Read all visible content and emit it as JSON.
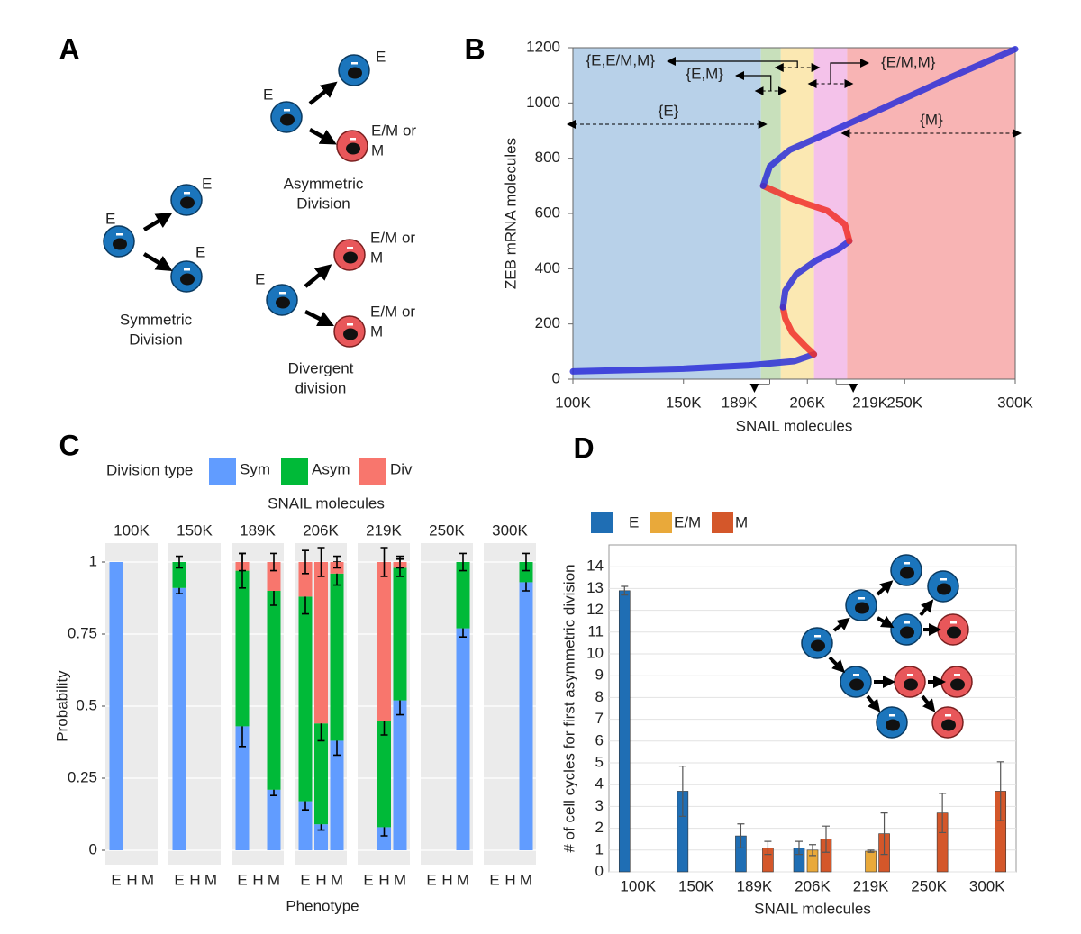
{
  "panel_labels": {
    "a": "A",
    "b": "B",
    "c": "C",
    "d": "D"
  },
  "diagram": {
    "symmetric": {
      "parent": "E",
      "child_top": "E",
      "child_bottom": "E",
      "caption": [
        "Symmetric",
        "Division"
      ]
    },
    "asymmetric": {
      "parent": "E",
      "child_top": "E",
      "child_bottom": [
        "E/M or",
        "M"
      ],
      "caption": [
        "Asymmetric",
        "Division"
      ]
    },
    "divergent": {
      "parent": "E",
      "child_top": [
        "E/M or",
        "M"
      ],
      "child_bottom": [
        "E/M or",
        "M"
      ],
      "caption": [
        "Divergent",
        "division"
      ]
    }
  },
  "chart_data": [
    {
      "type": "line",
      "xlabel": "SNAIL molecules",
      "ylabel": "ZEB mRNA molecules",
      "xlim": [
        100000,
        300000
      ],
      "ylim": [
        0,
        1200
      ],
      "xticks": [
        {
          "value": 100000,
          "label": "100K"
        },
        {
          "value": 150000,
          "label": "150K"
        },
        {
          "value": 189000,
          "label": "189K"
        },
        {
          "value": 206000,
          "label": "206K"
        },
        {
          "value": 219000,
          "label": "219K"
        },
        {
          "value": 250000,
          "label": "250K"
        },
        {
          "value": 300000,
          "label": "300K"
        }
      ],
      "yticks": [
        0,
        200,
        400,
        600,
        800,
        1000,
        1200
      ],
      "regions": [
        {
          "label": "{E}",
          "color": "#b8d1e9",
          "range": [
            100000,
            185000
          ]
        },
        {
          "label": "{E,M}",
          "color": "#c8e0bb",
          "range": [
            185000,
            194000
          ]
        },
        {
          "label": "{E,E/M,M}",
          "color": "#fbe8b2",
          "range": [
            194000,
            209000
          ]
        },
        {
          "label": "{E/M,M}",
          "color": "#f4c2ea",
          "range": [
            209000,
            224000
          ]
        },
        {
          "label": "{M}",
          "color": "#f8b4b4",
          "range": [
            224000,
            300000
          ]
        }
      ],
      "series": [
        {
          "color": "#2b2fd8",
          "x": [
            100000,
            150000,
            180000,
            200000,
            209000
          ],
          "y": [
            28,
            38,
            50,
            65,
            90
          ]
        },
        {
          "color": "#f0302a",
          "x": [
            209000,
            205000,
            199000,
            196000,
            195000
          ],
          "y": [
            90,
            120,
            170,
            220,
            260
          ]
        },
        {
          "color": "#2b2fd8",
          "x": [
            195000,
            196000,
            201000,
            210000,
            220000,
            225000
          ],
          "y": [
            260,
            320,
            380,
            430,
            470,
            500
          ]
        },
        {
          "color": "#f0302a",
          "x": [
            225000,
            223000,
            215000,
            200000,
            186000
          ],
          "y": [
            500,
            560,
            610,
            650,
            700
          ]
        },
        {
          "color": "#2b2fd8",
          "x": [
            186000,
            189000,
            198000,
            215000,
            240000,
            270000,
            300000
          ],
          "y": [
            700,
            770,
            830,
            890,
            980,
            1090,
            1195
          ]
        }
      ]
    },
    {
      "type": "faceted_stacked_bar",
      "title": "SNAIL molecules",
      "legend_title": "Division type",
      "xlabel": "Phenotype",
      "ylabel": "Probability",
      "facets": [
        "100K",
        "150K",
        "189K",
        "206K",
        "219K",
        "250K",
        "300K"
      ],
      "categories": [
        "E",
        "H",
        "M"
      ],
      "ylim": [
        -0.05,
        1.05
      ],
      "yticks": [
        0,
        0.25,
        0.5,
        0.75,
        1
      ],
      "grid": true,
      "series": [
        {
          "name": "Sym",
          "color": "#619cff",
          "values": [
            [
              1,
              0,
              0
            ],
            [
              0.91,
              0,
              0
            ],
            [
              0.43,
              0,
              0.21
            ],
            [
              0.17,
              0.09,
              0.38
            ],
            [
              0,
              0.08,
              0.52
            ],
            [
              0,
              0,
              0.77
            ],
            [
              0,
              0,
              0.93
            ]
          ],
          "errors": [
            [
              0,
              0,
              0
            ],
            [
              0.02,
              0,
              0
            ],
            [
              0.07,
              0,
              0.02
            ],
            [
              0.03,
              0.02,
              0.05
            ],
            [
              0,
              0.03,
              0.05
            ],
            [
              0,
              0,
              0.03
            ],
            [
              0,
              0,
              0.03
            ]
          ]
        },
        {
          "name": "Asym",
          "color": "#00ba38",
          "values": [
            [
              0,
              0,
              0
            ],
            [
              0.09,
              0,
              0
            ],
            [
              0.54,
              0,
              0.69
            ],
            [
              0.71,
              0.35,
              0.58
            ],
            [
              0,
              0.37,
              0.46
            ],
            [
              0,
              0,
              0.23
            ],
            [
              0,
              0,
              0.07
            ]
          ],
          "errors": [
            [
              0,
              0,
              0
            ],
            [
              0.02,
              0,
              0
            ],
            [
              0.06,
              0,
              0.05
            ],
            [
              0.06,
              0.06,
              0.04
            ],
            [
              0,
              0.05,
              0.03
            ],
            [
              0,
              0,
              0.03
            ],
            [
              0,
              0,
              0.03
            ]
          ]
        },
        {
          "name": "Div",
          "color": "#f8766d",
          "values": [
            [
              0,
              0,
              0
            ],
            [
              0,
              0,
              0
            ],
            [
              0.03,
              0,
              0.1
            ],
            [
              0.12,
              0.56,
              0.04
            ],
            [
              0,
              0.55,
              0.02
            ],
            [
              0,
              0,
              0
            ],
            [
              0,
              0,
              0
            ]
          ],
          "errors": [
            [
              0,
              0,
              0
            ],
            [
              0,
              0,
              0
            ],
            [
              0.03,
              0,
              0.03
            ],
            [
              0.04,
              0.05,
              0.02
            ],
            [
              0,
              0.05,
              0.02
            ],
            [
              0,
              0,
              0
            ],
            [
              0,
              0,
              0
            ]
          ]
        }
      ]
    },
    {
      "type": "grouped_bar",
      "xlabel": "SNAIL molecules",
      "ylabel": "# of cell cycles for first asymmetric division",
      "categories": [
        "100K",
        "150K",
        "189K",
        "206K",
        "219K",
        "250K",
        "300K"
      ],
      "ylim": [
        0,
        15
      ],
      "yticks": [
        0,
        1,
        2,
        3,
        4,
        5,
        6,
        7,
        8,
        9,
        10,
        11,
        12,
        13,
        14
      ],
      "grid": true,
      "series": [
        {
          "name": "E",
          "color": "#1f6eb4",
          "values": [
            12.9,
            3.7,
            1.65,
            1.1,
            0,
            0,
            0
          ],
          "errors": [
            0.2,
            1.15,
            0.55,
            0.3,
            0,
            0,
            0
          ]
        },
        {
          "name": "E/M",
          "color": "#e9a93a",
          "values": [
            0,
            0,
            0,
            1.0,
            0.95,
            0,
            0
          ],
          "errors": [
            0,
            0,
            0,
            0.25,
            0.05,
            0,
            0
          ]
        },
        {
          "name": "M",
          "color": "#d4572a",
          "values": [
            0,
            0,
            1.1,
            1.5,
            1.75,
            2.7,
            3.7
          ],
          "errors": [
            0,
            0,
            0.3,
            0.6,
            0.95,
            0.9,
            1.35
          ]
        }
      ]
    }
  ]
}
